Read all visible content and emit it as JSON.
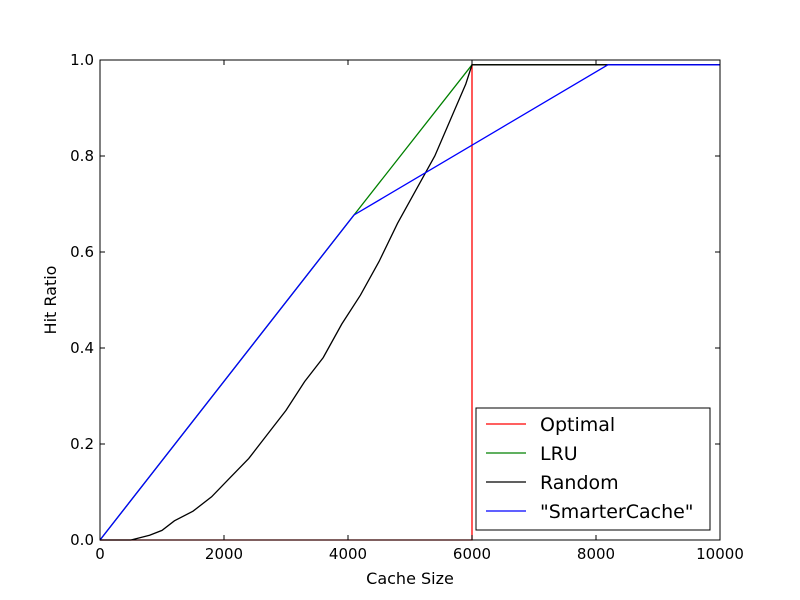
{
  "chart_data": {
    "type": "line",
    "xlabel": "Cache Size",
    "ylabel": "Hit Ratio",
    "xlim": [
      0,
      10000
    ],
    "ylim": [
      0.0,
      1.0
    ],
    "xticks": [
      0,
      2000,
      4000,
      6000,
      8000,
      10000
    ],
    "xtick_labels": [
      "0",
      "2000",
      "4000",
      "6000",
      "8000",
      "10000"
    ],
    "yticks": [
      0.0,
      0.2,
      0.4,
      0.6,
      0.8,
      1.0
    ],
    "ytick_labels": [
      "0.0",
      "0.2",
      "0.4",
      "0.6",
      "0.8",
      "1.0"
    ],
    "grid": false,
    "legend_position": "lower-right",
    "series": [
      {
        "name": "Optimal",
        "color": "#ff0000",
        "x": [
          0,
          5990,
          6000,
          6000,
          10000
        ],
        "y": [
          0.0,
          0.0,
          0.0,
          0.99,
          0.99
        ]
      },
      {
        "name": "LRU",
        "color": "#008000",
        "x": [
          0,
          4096,
          6000,
          10000
        ],
        "y": [
          0.0,
          0.677,
          0.99,
          0.99
        ]
      },
      {
        "name": "Random",
        "color": "#000000",
        "x": [
          0,
          500,
          800,
          1000,
          1200,
          1500,
          1800,
          2100,
          2400,
          2700,
          3000,
          3300,
          3600,
          3900,
          4200,
          4500,
          4800,
          5100,
          5400,
          5700,
          5900,
          6000,
          10000
        ],
        "y": [
          0.0,
          0.0,
          0.01,
          0.02,
          0.04,
          0.06,
          0.09,
          0.13,
          0.17,
          0.22,
          0.27,
          0.33,
          0.38,
          0.45,
          0.51,
          0.58,
          0.66,
          0.73,
          0.8,
          0.89,
          0.95,
          0.99,
          0.99
        ]
      },
      {
        "name": "\"SmarterCache\"",
        "color": "#0000ff",
        "x": [
          0,
          4096,
          8192,
          10000
        ],
        "y": [
          0.0,
          0.677,
          0.99,
          0.99
        ]
      }
    ]
  }
}
